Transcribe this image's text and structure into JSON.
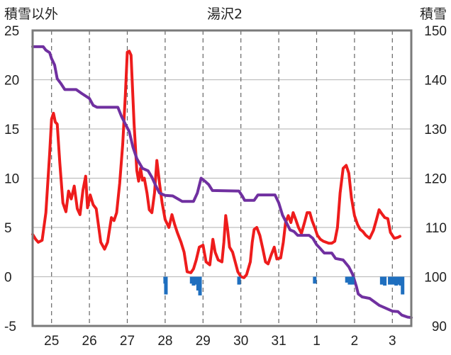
{
  "chart_data": {
    "type": "line",
    "title": "湯沢2",
    "ylabel_left": "積雪以外",
    "ylabel_right": "積雪",
    "categories": [
      "25",
      "26",
      "27",
      "28",
      "29",
      "30",
      "31",
      "1",
      "2",
      "3"
    ],
    "x_range": [
      24.5,
      34.5
    ],
    "ylim_left": [
      -5,
      25
    ],
    "ylim_right": [
      90,
      150
    ],
    "yticks_left": [
      "-5",
      "0",
      "5",
      "10",
      "15",
      "20",
      "25"
    ],
    "yticks_right": [
      "90",
      "100",
      "110",
      "120",
      "130",
      "140",
      "150"
    ],
    "grid": "dashed vertical at each day, solid horizontal at major ticks",
    "colors": {
      "temperature": "#ee1c1c",
      "snow_depth": "#7030a0",
      "precipitation": "#1f6fbf",
      "frame": "#7a7a7a",
      "grid": "#bfbfbf"
    },
    "series": [
      {
        "key": "temperature",
        "axis": "left",
        "points": [
          [
            24.5,
            4.3
          ],
          [
            24.58,
            3.8
          ],
          [
            24.65,
            3.5
          ],
          [
            24.75,
            3.7
          ],
          [
            24.85,
            6.5
          ],
          [
            24.95,
            12.5
          ],
          [
            25.0,
            16.0
          ],
          [
            25.05,
            16.6
          ],
          [
            25.1,
            15.7
          ],
          [
            25.15,
            15.5
          ],
          [
            25.22,
            11.5
          ],
          [
            25.3,
            7.5
          ],
          [
            25.38,
            6.6
          ],
          [
            25.45,
            8.7
          ],
          [
            25.52,
            7.9
          ],
          [
            25.6,
            9.2
          ],
          [
            25.68,
            6.9
          ],
          [
            25.75,
            6.3
          ],
          [
            25.83,
            8.8
          ],
          [
            25.9,
            10.2
          ],
          [
            25.95,
            7.0
          ],
          [
            26.02,
            8.3
          ],
          [
            26.1,
            7.3
          ],
          [
            26.18,
            6.9
          ],
          [
            26.3,
            3.5
          ],
          [
            26.4,
            2.8
          ],
          [
            26.48,
            3.5
          ],
          [
            26.58,
            6.0
          ],
          [
            26.65,
            5.7
          ],
          [
            26.72,
            6.5
          ],
          [
            26.8,
            9.5
          ],
          [
            26.88,
            13.5
          ],
          [
            26.95,
            18.5
          ],
          [
            27.0,
            22.8
          ],
          [
            27.05,
            22.9
          ],
          [
            27.1,
            22.5
          ],
          [
            27.18,
            15.5
          ],
          [
            27.25,
            10.8
          ],
          [
            27.3,
            9.7
          ],
          [
            27.35,
            11.0
          ],
          [
            27.4,
            9.8
          ],
          [
            27.45,
            10.0
          ],
          [
            27.52,
            8.5
          ],
          [
            27.58,
            6.8
          ],
          [
            27.65,
            6.5
          ],
          [
            27.72,
            8.5
          ],
          [
            27.78,
            11.8
          ],
          [
            27.85,
            9.5
          ],
          [
            27.92,
            7.5
          ],
          [
            28.0,
            5.8
          ],
          [
            28.1,
            5.0
          ],
          [
            28.18,
            6.3
          ],
          [
            28.25,
            5.3
          ],
          [
            28.32,
            4.5
          ],
          [
            28.42,
            3.5
          ],
          [
            28.5,
            2.5
          ],
          [
            28.58,
            0.5
          ],
          [
            28.68,
            0.4
          ],
          [
            28.75,
            0.8
          ],
          [
            28.82,
            1.7
          ],
          [
            28.9,
            3.0
          ],
          [
            29.0,
            3.2
          ],
          [
            29.08,
            1.5
          ],
          [
            29.18,
            1.2
          ],
          [
            29.26,
            3.8
          ],
          [
            29.32,
            2.5
          ],
          [
            29.4,
            1.7
          ],
          [
            29.5,
            1.5
          ],
          [
            29.55,
            3.5
          ],
          [
            29.6,
            6.2
          ],
          [
            29.65,
            4.8
          ],
          [
            29.7,
            3.0
          ],
          [
            29.78,
            2.5
          ],
          [
            29.85,
            1.5
          ],
          [
            29.92,
            0.5
          ],
          [
            30.0,
            0.0
          ],
          [
            30.08,
            -0.1
          ],
          [
            30.15,
            0.2
          ],
          [
            30.25,
            1.5
          ],
          [
            30.3,
            3.5
          ],
          [
            30.35,
            4.8
          ],
          [
            30.42,
            5.0
          ],
          [
            30.5,
            4.2
          ],
          [
            30.58,
            2.8
          ],
          [
            30.65,
            1.5
          ],
          [
            30.72,
            1.3
          ],
          [
            30.8,
            2.2
          ],
          [
            30.88,
            3.0
          ],
          [
            30.95,
            1.8
          ],
          [
            31.05,
            1.9
          ],
          [
            31.12,
            3.5
          ],
          [
            31.18,
            5.5
          ],
          [
            31.25,
            6.2
          ],
          [
            31.32,
            5.5
          ],
          [
            31.38,
            6.5
          ],
          [
            31.45,
            5.8
          ],
          [
            31.52,
            5.0
          ],
          [
            31.6,
            4.4
          ],
          [
            31.68,
            5.5
          ],
          [
            31.75,
            6.5
          ],
          [
            31.82,
            6.5
          ],
          [
            31.88,
            5.7
          ],
          [
            31.95,
            5.0
          ],
          [
            32.02,
            4.2
          ],
          [
            32.1,
            3.8
          ],
          [
            32.18,
            3.6
          ],
          [
            32.25,
            3.5
          ],
          [
            32.32,
            3.4
          ],
          [
            32.4,
            3.4
          ],
          [
            32.48,
            3.6
          ],
          [
            32.55,
            5.0
          ],
          [
            32.62,
            8.5
          ],
          [
            32.7,
            11.0
          ],
          [
            32.78,
            11.3
          ],
          [
            32.85,
            10.5
          ],
          [
            32.92,
            8.0
          ],
          [
            33.0,
            6.2
          ],
          [
            33.08,
            5.3
          ],
          [
            33.15,
            4.8
          ],
          [
            33.22,
            4.6
          ],
          [
            33.3,
            4.2
          ],
          [
            33.4,
            3.9
          ],
          [
            33.5,
            4.7
          ],
          [
            33.58,
            5.8
          ],
          [
            33.65,
            6.8
          ],
          [
            33.72,
            6.4
          ],
          [
            33.8,
            6.0
          ],
          [
            33.88,
            5.9
          ],
          [
            33.95,
            4.5
          ],
          [
            34.05,
            3.9
          ],
          [
            34.15,
            4.0
          ],
          [
            34.2,
            4.1
          ]
        ]
      },
      {
        "key": "snow_depth",
        "axis": "right",
        "points": [
          [
            24.5,
            146.7
          ],
          [
            24.78,
            146.7
          ],
          [
            24.85,
            146.0
          ],
          [
            24.95,
            145.5
          ],
          [
            25.0,
            144.3
          ],
          [
            25.08,
            143.0
          ],
          [
            25.15,
            140.2
          ],
          [
            25.25,
            139.2
          ],
          [
            25.35,
            138.0
          ],
          [
            25.65,
            138.0
          ],
          [
            25.8,
            137.2
          ],
          [
            26.0,
            136.2
          ],
          [
            26.1,
            134.8
          ],
          [
            26.2,
            134.4
          ],
          [
            26.75,
            134.4
          ],
          [
            26.85,
            132.5
          ],
          [
            26.95,
            131.0
          ],
          [
            27.05,
            129.5
          ],
          [
            27.15,
            126.3
          ],
          [
            27.25,
            124.0
          ],
          [
            27.4,
            122.0
          ],
          [
            27.55,
            121.5
          ],
          [
            27.65,
            120.2
          ],
          [
            27.75,
            118.5
          ],
          [
            27.85,
            117.0
          ],
          [
            28.0,
            116.5
          ],
          [
            28.2,
            116.4
          ],
          [
            28.45,
            115.3
          ],
          [
            28.75,
            115.3
          ],
          [
            28.85,
            117.0
          ],
          [
            28.95,
            120.0
          ],
          [
            29.05,
            119.4
          ],
          [
            29.15,
            118.7
          ],
          [
            29.25,
            117.5
          ],
          [
            29.95,
            117.4
          ],
          [
            30.05,
            116.2
          ],
          [
            30.1,
            115.5
          ],
          [
            30.35,
            115.5
          ],
          [
            30.45,
            116.6
          ],
          [
            30.9,
            116.6
          ],
          [
            31.0,
            115.0
          ],
          [
            31.1,
            112.5
          ],
          [
            31.2,
            111.0
          ],
          [
            31.3,
            109.5
          ],
          [
            31.4,
            109.2
          ],
          [
            31.5,
            108.4
          ],
          [
            31.8,
            108.4
          ],
          [
            31.9,
            107.8
          ],
          [
            32.0,
            106.5
          ],
          [
            32.1,
            105.7
          ],
          [
            32.2,
            104.8
          ],
          [
            32.4,
            104.8
          ],
          [
            32.5,
            103.7
          ],
          [
            32.7,
            103.4
          ],
          [
            32.85,
            102.0
          ],
          [
            32.95,
            100.5
          ],
          [
            33.05,
            98.0
          ],
          [
            33.1,
            96.5
          ],
          [
            33.2,
            95.9
          ],
          [
            33.4,
            95.6
          ],
          [
            33.65,
            94.2
          ],
          [
            33.8,
            93.7
          ],
          [
            34.0,
            93.0
          ],
          [
            34.15,
            92.9
          ],
          [
            34.25,
            92.2
          ],
          [
            34.4,
            91.8
          ],
          [
            34.5,
            91.7
          ]
        ]
      },
      {
        "key": "precipitation",
        "axis": "left",
        "points": [
          [
            28.0,
            -0.2
          ],
          [
            28.0,
            -0.7
          ],
          [
            28.02,
            -1.8
          ],
          [
            28.7,
            -0.7
          ],
          [
            28.75,
            -0.9
          ],
          [
            28.82,
            -0.8
          ],
          [
            28.87,
            -1.4
          ],
          [
            28.92,
            -1.9
          ],
          [
            29.95,
            -0.8
          ],
          [
            31.95,
            -0.7
          ],
          [
            32.8,
            -0.6
          ],
          [
            32.87,
            -0.8
          ],
          [
            32.95,
            -0.8
          ],
          [
            33.72,
            -0.8
          ],
          [
            33.8,
            -0.9
          ],
          [
            33.93,
            -0.8
          ],
          [
            33.97,
            -0.7
          ],
          [
            34.02,
            -0.8
          ],
          [
            34.1,
            -0.9
          ],
          [
            34.15,
            -0.8
          ],
          [
            34.22,
            -0.9
          ],
          [
            34.27,
            -1.8
          ]
        ]
      }
    ]
  }
}
